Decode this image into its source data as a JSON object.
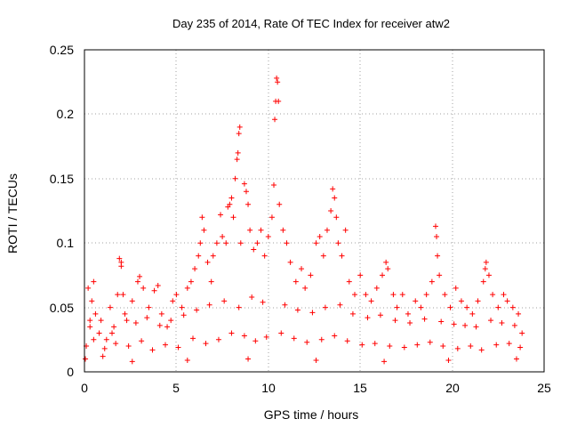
{
  "chart_data": {
    "type": "scatter",
    "title": "Day 235 of 2014, Rate Of TEC Index for receiver atw2",
    "xlabel": "GPS time / hours",
    "ylabel": "ROTI / TECUs",
    "xlim": [
      0,
      25
    ],
    "ylim": [
      0,
      0.25
    ],
    "xticks": [
      0,
      5,
      10,
      15,
      20,
      25
    ],
    "yticks": [
      0,
      0.05,
      0.1,
      0.15,
      0.2,
      0.25
    ],
    "xtick_labels": [
      "0",
      "5",
      "10",
      "15",
      "20",
      "25"
    ],
    "ytick_labels": [
      "0",
      "0.05",
      "0.1",
      "0.15",
      "0.2",
      "0.25"
    ],
    "grid": true,
    "marker": "+",
    "color": "#ff0000",
    "series": [
      {
        "name": "ROTI",
        "points": [
          [
            0.1,
            0.02
          ],
          [
            0.2,
            0.065
          ],
          [
            0.3,
            0.04
          ],
          [
            0.4,
            0.055
          ],
          [
            0.5,
            0.07
          ],
          [
            0.6,
            0.045
          ],
          [
            0.8,
            0.03
          ],
          [
            1.0,
            0.012
          ],
          [
            1.2,
            0.025
          ],
          [
            1.4,
            0.05
          ],
          [
            1.6,
            0.035
          ],
          [
            1.8,
            0.06
          ],
          [
            1.9,
            0.088
          ],
          [
            2.0,
            0.085
          ],
          [
            2.0,
            0.082
          ],
          [
            2.1,
            0.06
          ],
          [
            2.3,
            0.04
          ],
          [
            2.6,
            0.055
          ],
          [
            2.9,
            0.07
          ],
          [
            3.0,
            0.074
          ],
          [
            3.2,
            0.065
          ],
          [
            3.5,
            0.05
          ],
          [
            3.8,
            0.063
          ],
          [
            4.0,
            0.067
          ],
          [
            4.2,
            0.045
          ],
          [
            4.5,
            0.035
          ],
          [
            4.8,
            0.055
          ],
          [
            5.0,
            0.06
          ],
          [
            5.3,
            0.05
          ],
          [
            5.6,
            0.065
          ],
          [
            5.8,
            0.07
          ],
          [
            6.0,
            0.08
          ],
          [
            6.2,
            0.09
          ],
          [
            6.3,
            0.1
          ],
          [
            6.4,
            0.12
          ],
          [
            6.5,
            0.11
          ],
          [
            6.7,
            0.085
          ],
          [
            6.9,
            0.07
          ],
          [
            7.0,
            0.09
          ],
          [
            7.2,
            0.1
          ],
          [
            7.4,
            0.122
          ],
          [
            7.5,
            0.105
          ],
          [
            7.7,
            0.1
          ],
          [
            7.8,
            0.128
          ],
          [
            7.9,
            0.13
          ],
          [
            8.0,
            0.135
          ],
          [
            8.1,
            0.12
          ],
          [
            8.2,
            0.15
          ],
          [
            8.3,
            0.165
          ],
          [
            8.35,
            0.17
          ],
          [
            8.4,
            0.185
          ],
          [
            8.45,
            0.19
          ],
          [
            8.5,
            0.1
          ],
          [
            8.7,
            0.146
          ],
          [
            8.8,
            0.14
          ],
          [
            8.9,
            0.13
          ],
          [
            9.0,
            0.11
          ],
          [
            9.2,
            0.095
          ],
          [
            9.4,
            0.1
          ],
          [
            9.6,
            0.11
          ],
          [
            9.8,
            0.09
          ],
          [
            10.0,
            0.105
          ],
          [
            10.2,
            0.12
          ],
          [
            10.3,
            0.145
          ],
          [
            10.35,
            0.196
          ],
          [
            10.4,
            0.21
          ],
          [
            10.45,
            0.228
          ],
          [
            10.5,
            0.225
          ],
          [
            10.55,
            0.21
          ],
          [
            10.6,
            0.13
          ],
          [
            10.8,
            0.11
          ],
          [
            11.0,
            0.1
          ],
          [
            11.2,
            0.085
          ],
          [
            11.5,
            0.07
          ],
          [
            11.8,
            0.08
          ],
          [
            12.0,
            0.065
          ],
          [
            12.3,
            0.075
          ],
          [
            12.6,
            0.1
          ],
          [
            12.8,
            0.105
          ],
          [
            13.0,
            0.09
          ],
          [
            13.2,
            0.11
          ],
          [
            13.4,
            0.125
          ],
          [
            13.5,
            0.142
          ],
          [
            13.6,
            0.135
          ],
          [
            13.7,
            0.12
          ],
          [
            13.8,
            0.1
          ],
          [
            14.0,
            0.09
          ],
          [
            14.2,
            0.11
          ],
          [
            14.4,
            0.07
          ],
          [
            14.7,
            0.06
          ],
          [
            15.0,
            0.075
          ],
          [
            15.3,
            0.06
          ],
          [
            15.6,
            0.055
          ],
          [
            15.9,
            0.065
          ],
          [
            16.2,
            0.075
          ],
          [
            16.4,
            0.085
          ],
          [
            16.5,
            0.08
          ],
          [
            16.8,
            0.06
          ],
          [
            17.0,
            0.05
          ],
          [
            17.3,
            0.06
          ],
          [
            17.6,
            0.045
          ],
          [
            18.0,
            0.055
          ],
          [
            18.3,
            0.05
          ],
          [
            18.6,
            0.06
          ],
          [
            18.9,
            0.07
          ],
          [
            19.1,
            0.113
          ],
          [
            19.15,
            0.105
          ],
          [
            19.2,
            0.09
          ],
          [
            19.3,
            0.075
          ],
          [
            19.6,
            0.06
          ],
          [
            19.9,
            0.05
          ],
          [
            20.2,
            0.065
          ],
          [
            20.5,
            0.055
          ],
          [
            20.8,
            0.05
          ],
          [
            21.1,
            0.045
          ],
          [
            21.4,
            0.055
          ],
          [
            21.7,
            0.07
          ],
          [
            21.8,
            0.08
          ],
          [
            21.85,
            0.085
          ],
          [
            22.0,
            0.075
          ],
          [
            22.2,
            0.06
          ],
          [
            22.5,
            0.05
          ],
          [
            22.8,
            0.06
          ],
          [
            23.0,
            0.055
          ],
          [
            23.3,
            0.05
          ],
          [
            23.6,
            0.045
          ],
          [
            0.5,
            0.025
          ],
          [
            1.1,
            0.018
          ],
          [
            1.7,
            0.022
          ],
          [
            2.4,
            0.02
          ],
          [
            3.1,
            0.024
          ],
          [
            3.7,
            0.017
          ],
          [
            4.4,
            0.021
          ],
          [
            5.1,
            0.019
          ],
          [
            5.9,
            0.026
          ],
          [
            6.6,
            0.022
          ],
          [
            7.3,
            0.025
          ],
          [
            8.0,
            0.03
          ],
          [
            8.7,
            0.028
          ],
          [
            9.3,
            0.024
          ],
          [
            9.9,
            0.027
          ],
          [
            10.7,
            0.03
          ],
          [
            11.4,
            0.026
          ],
          [
            12.1,
            0.023
          ],
          [
            12.9,
            0.025
          ],
          [
            13.6,
            0.028
          ],
          [
            14.3,
            0.024
          ],
          [
            15.1,
            0.021
          ],
          [
            15.8,
            0.022
          ],
          [
            16.6,
            0.02
          ],
          [
            17.4,
            0.019
          ],
          [
            18.1,
            0.021
          ],
          [
            18.8,
            0.023
          ],
          [
            19.5,
            0.02
          ],
          [
            20.3,
            0.018
          ],
          [
            21.0,
            0.02
          ],
          [
            21.6,
            0.017
          ],
          [
            22.4,
            0.021
          ],
          [
            23.1,
            0.022
          ],
          [
            23.7,
            0.019
          ],
          [
            0.3,
            0.035
          ],
          [
            0.9,
            0.04
          ],
          [
            1.5,
            0.03
          ],
          [
            2.2,
            0.045
          ],
          [
            2.8,
            0.038
          ],
          [
            3.4,
            0.042
          ],
          [
            4.1,
            0.036
          ],
          [
            4.7,
            0.04
          ],
          [
            5.4,
            0.044
          ],
          [
            6.1,
            0.048
          ],
          [
            6.8,
            0.052
          ],
          [
            7.6,
            0.055
          ],
          [
            8.4,
            0.05
          ],
          [
            9.1,
            0.058
          ],
          [
            9.7,
            0.054
          ],
          [
            10.9,
            0.052
          ],
          [
            11.6,
            0.048
          ],
          [
            12.4,
            0.046
          ],
          [
            13.1,
            0.05
          ],
          [
            13.9,
            0.052
          ],
          [
            14.6,
            0.045
          ],
          [
            15.4,
            0.042
          ],
          [
            16.1,
            0.044
          ],
          [
            16.9,
            0.04
          ],
          [
            17.7,
            0.038
          ],
          [
            18.5,
            0.041
          ],
          [
            19.4,
            0.039
          ],
          [
            20.1,
            0.037
          ],
          [
            20.7,
            0.036
          ],
          [
            21.3,
            0.035
          ],
          [
            22.1,
            0.04
          ],
          [
            22.7,
            0.038
          ],
          [
            23.4,
            0.036
          ],
          [
            23.8,
            0.03
          ],
          [
            0.05,
            0.01
          ],
          [
            2.6,
            0.008
          ],
          [
            5.6,
            0.009
          ],
          [
            8.9,
            0.01
          ],
          [
            12.6,
            0.009
          ],
          [
            16.3,
            0.008
          ],
          [
            19.8,
            0.009
          ],
          [
            23.5,
            0.01
          ]
        ]
      }
    ]
  }
}
